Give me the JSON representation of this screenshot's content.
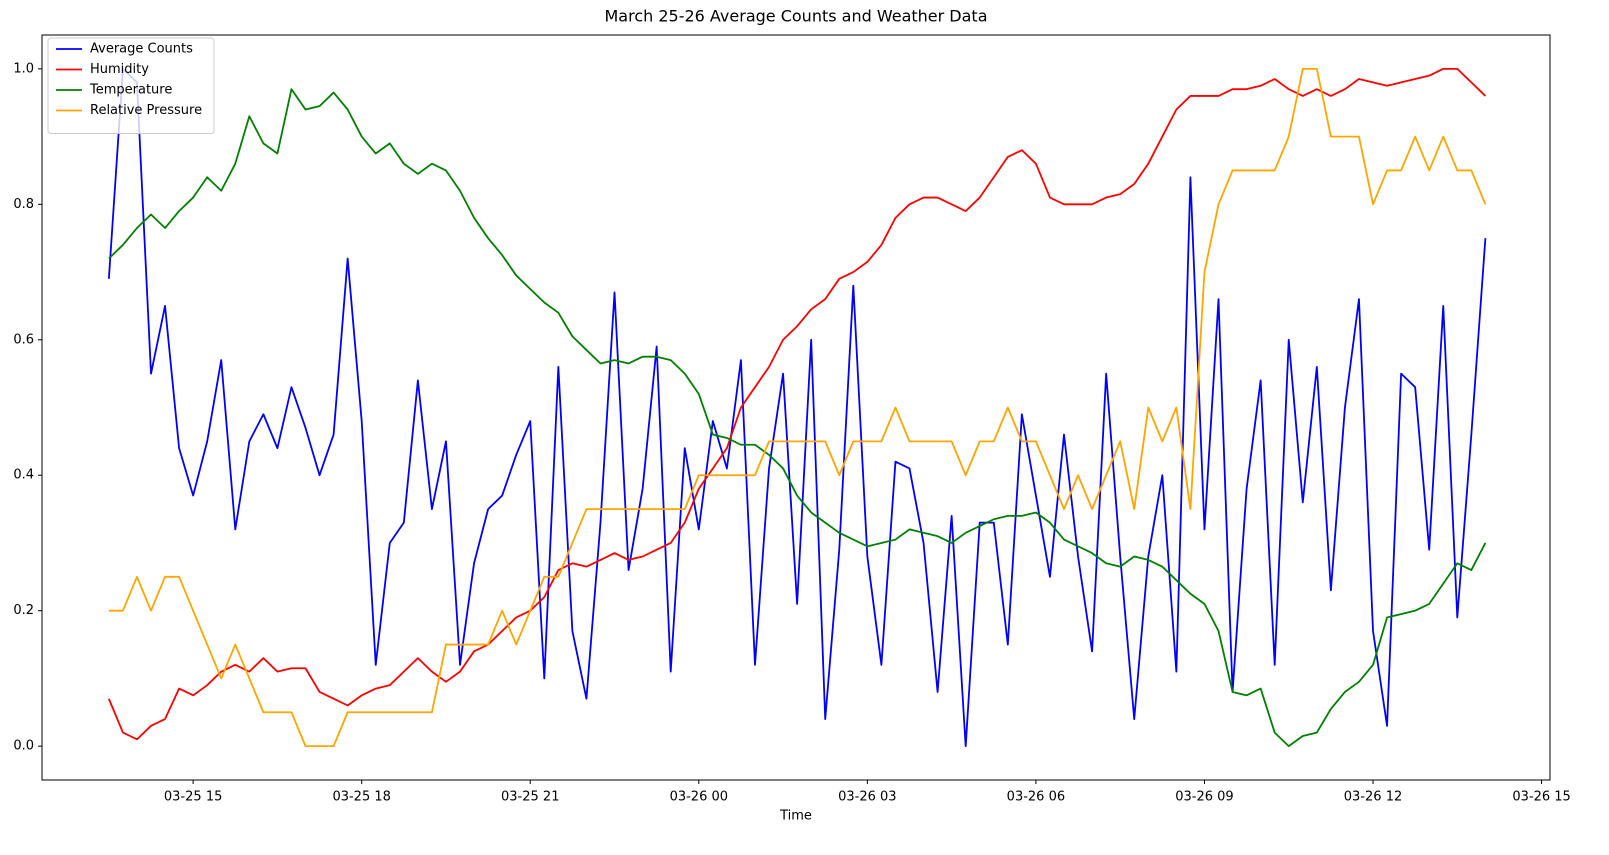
{
  "chart_data": {
    "type": "line",
    "title": "March 25-26 Average Counts and Weather Data",
    "x_label": "Time",
    "x": [
      13.5,
      13.75,
      14,
      14.25,
      14.5,
      14.75,
      15,
      15.25,
      15.5,
      15.75,
      16,
      16.25,
      16.5,
      16.75,
      17,
      17.25,
      17.5,
      17.75,
      18,
      18.25,
      18.5,
      18.75,
      19,
      19.25,
      19.5,
      19.75,
      20,
      20.25,
      20.5,
      20.75,
      21,
      21.25,
      21.5,
      21.75,
      22,
      22.25,
      22.5,
      22.75,
      23,
      23.25,
      23.5,
      23.75,
      24,
      24.25,
      24.5,
      24.75,
      25,
      25.25,
      25.5,
      25.75,
      26,
      26.25,
      26.5,
      26.75,
      27,
      27.25,
      27.5,
      27.75,
      28,
      28.25,
      28.5,
      28.75,
      29,
      29.25,
      29.5,
      29.75,
      30,
      30.25,
      30.5,
      30.75,
      31,
      31.25,
      31.5,
      31.75,
      32,
      32.25,
      32.5,
      32.75,
      33,
      33.25,
      33.5,
      33.75,
      34,
      34.25,
      34.5,
      34.75,
      35,
      35.25,
      35.5,
      35.75,
      36,
      36.25,
      36.5,
      36.75,
      37,
      37.25,
      37.5,
      37.75,
      38
    ],
    "xlim": [
      12.31,
      39.15
    ],
    "xticks": [
      {
        "value": 15,
        "label": "03-25 15"
      },
      {
        "value": 18,
        "label": "03-25 18"
      },
      {
        "value": 21,
        "label": "03-25 21"
      },
      {
        "value": 24,
        "label": "03-26 00"
      },
      {
        "value": 27,
        "label": "03-26 03"
      },
      {
        "value": 30,
        "label": "03-26 06"
      },
      {
        "value": 33,
        "label": "03-26 09"
      },
      {
        "value": 36,
        "label": "03-26 12"
      },
      {
        "value": 39,
        "label": "03-26 15"
      }
    ],
    "ylim": [
      -0.05,
      1.05
    ],
    "yticks": [
      {
        "value": 0,
        "label": "0.0"
      },
      0.2,
      0.4,
      0.6,
      0.8,
      {
        "value": 1,
        "label": "1.0"
      }
    ],
    "grid": false,
    "legend": "upper left",
    "series": [
      {
        "name": "Average Counts",
        "color": "#0000ff",
        "values": [
          0.69,
          1.0,
          0.98,
          0.55,
          0.65,
          0.44,
          0.37,
          0.45,
          0.57,
          0.32,
          0.45,
          0.49,
          0.44,
          0.53,
          0.47,
          0.4,
          0.46,
          0.72,
          0.48,
          0.12,
          0.3,
          0.33,
          0.54,
          0.35,
          0.45,
          0.12,
          0.27,
          0.35,
          0.37,
          0.43,
          0.48,
          0.1,
          0.56,
          0.17,
          0.07,
          0.33,
          0.67,
          0.26,
          0.38,
          0.59,
          0.11,
          0.44,
          0.32,
          0.48,
          0.41,
          0.57,
          0.12,
          0.41,
          0.55,
          0.21,
          0.6,
          0.04,
          0.29,
          0.68,
          0.28,
          0.12,
          0.42,
          0.41,
          0.3,
          0.08,
          0.34,
          0.0,
          0.33,
          0.33,
          0.15,
          0.49,
          0.37,
          0.25,
          0.46,
          0.28,
          0.14,
          0.55,
          0.28,
          0.04,
          0.28,
          0.4,
          0.11,
          0.84,
          0.32,
          0.66,
          0.08,
          0.38,
          0.54,
          0.12,
          0.6,
          0.36,
          0.56,
          0.23,
          0.5,
          0.66,
          0.17,
          0.03,
          0.55,
          0.53,
          0.29,
          0.65,
          0.19,
          0.46,
          0.75
        ]
      },
      {
        "name": "Humidity",
        "color": "#ff0000",
        "values": [
          0.07,
          0.02,
          0.01,
          0.03,
          0.04,
          0.085,
          0.075,
          0.09,
          0.11,
          0.12,
          0.11,
          0.13,
          0.11,
          0.115,
          0.115,
          0.08,
          0.07,
          0.06,
          0.075,
          0.085,
          0.09,
          0.11,
          0.13,
          0.11,
          0.095,
          0.11,
          0.14,
          0.15,
          0.17,
          0.19,
          0.2,
          0.22,
          0.26,
          0.27,
          0.265,
          0.275,
          0.285,
          0.275,
          0.28,
          0.29,
          0.3,
          0.33,
          0.38,
          0.41,
          0.44,
          0.5,
          0.53,
          0.56,
          0.6,
          0.62,
          0.645,
          0.66,
          0.69,
          0.7,
          0.715,
          0.74,
          0.78,
          0.8,
          0.81,
          0.81,
          0.8,
          0.79,
          0.81,
          0.84,
          0.87,
          0.88,
          0.86,
          0.81,
          0.8,
          0.8,
          0.8,
          0.81,
          0.815,
          0.83,
          0.86,
          0.9,
          0.94,
          0.96,
          0.96,
          0.96,
          0.97,
          0.97,
          0.975,
          0.985,
          0.97,
          0.96,
          0.97,
          0.96,
          0.97,
          0.985,
          0.98,
          0.975,
          0.98,
          0.985,
          0.99,
          1.0,
          1.0,
          0.98,
          0.96
        ]
      },
      {
        "name": "Temperature",
        "color": "#008000",
        "values": [
          0.72,
          0.74,
          0.765,
          0.785,
          0.765,
          0.79,
          0.81,
          0.84,
          0.82,
          0.86,
          0.93,
          0.89,
          0.875,
          0.97,
          0.94,
          0.945,
          0.965,
          0.94,
          0.9,
          0.875,
          0.89,
          0.86,
          0.845,
          0.86,
          0.85,
          0.82,
          0.78,
          0.75,
          0.725,
          0.695,
          0.675,
          0.655,
          0.64,
          0.605,
          0.585,
          0.565,
          0.57,
          0.565,
          0.575,
          0.575,
          0.57,
          0.55,
          0.52,
          0.46,
          0.455,
          0.445,
          0.445,
          0.43,
          0.41,
          0.37,
          0.345,
          0.33,
          0.315,
          0.305,
          0.295,
          0.3,
          0.305,
          0.32,
          0.315,
          0.31,
          0.3,
          0.315,
          0.325,
          0.335,
          0.34,
          0.34,
          0.345,
          0.33,
          0.305,
          0.295,
          0.285,
          0.27,
          0.265,
          0.28,
          0.275,
          0.265,
          0.245,
          0.225,
          0.21,
          0.17,
          0.08,
          0.075,
          0.085,
          0.02,
          0.0,
          0.015,
          0.02,
          0.055,
          0.08,
          0.095,
          0.12,
          0.19,
          0.195,
          0.2,
          0.21,
          0.24,
          0.27,
          0.26,
          0.3
        ]
      },
      {
        "name": "Relative Pressure",
        "color": "#ffa500",
        "values": [
          0.2,
          0.2,
          0.25,
          0.2,
          0.25,
          0.25,
          0.2,
          0.15,
          0.1,
          0.15,
          0.1,
          0.05,
          0.05,
          0.05,
          0.0,
          0.0,
          0.0,
          0.05,
          0.05,
          0.05,
          0.05,
          0.05,
          0.05,
          0.05,
          0.15,
          0.15,
          0.15,
          0.15,
          0.2,
          0.15,
          0.2,
          0.25,
          0.25,
          0.3,
          0.35,
          0.35,
          0.35,
          0.35,
          0.35,
          0.35,
          0.35,
          0.35,
          0.4,
          0.4,
          0.4,
          0.4,
          0.4,
          0.45,
          0.45,
          0.45,
          0.45,
          0.45,
          0.4,
          0.45,
          0.45,
          0.45,
          0.5,
          0.45,
          0.45,
          0.45,
          0.45,
          0.4,
          0.45,
          0.45,
          0.5,
          0.45,
          0.45,
          0.4,
          0.35,
          0.4,
          0.35,
          0.4,
          0.45,
          0.35,
          0.5,
          0.45,
          0.5,
          0.35,
          0.7,
          0.8,
          0.85,
          0.85,
          0.85,
          0.85,
          0.9,
          1.0,
          1.0,
          0.9,
          0.9,
          0.9,
          0.8,
          0.85,
          0.85,
          0.9,
          0.85,
          0.9,
          0.85,
          0.85,
          0.8
        ]
      }
    ]
  }
}
